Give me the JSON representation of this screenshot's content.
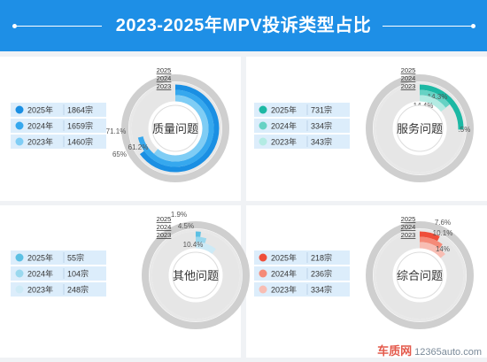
{
  "page": {
    "title": "2023-2025年MPV投诉类型占比"
  },
  "footer": {
    "logo_brand": "车质网",
    "logo_site": "12365auto.com"
  },
  "chart_data": [
    {
      "type": "donut",
      "title": "质量问题",
      "ring_labels": [
        "2025",
        "2024",
        "2023"
      ],
      "series": [
        {
          "legend": "2025年",
          "count": "1864宗",
          "percent": 65,
          "percent_label": "65%",
          "color": "#1a8fe3"
        },
        {
          "legend": "2024年",
          "count": "1659宗",
          "percent": 71.1,
          "percent_label": "71.1%",
          "color": "#36a8ee"
        },
        {
          "legend": "2023年",
          "count": "1460宗",
          "percent": 61.2,
          "percent_label": "61.2%",
          "color": "#7fcdf5"
        }
      ]
    },
    {
      "type": "donut",
      "title": "服务问题",
      "ring_labels": [
        "2025",
        "2024",
        "2023"
      ],
      "series": [
        {
          "legend": "2025年",
          "count": "731宗",
          "percent": 25.5,
          "percent_label": "25.5%",
          "color": "#1cb8a4"
        },
        {
          "legend": "2024年",
          "count": "334宗",
          "percent": 14.3,
          "percent_label": "14.3%",
          "color": "#66d2c4"
        },
        {
          "legend": "2023年",
          "count": "343宗",
          "percent": 14.4,
          "percent_label": "14.4%",
          "color": "#b3ebe3"
        }
      ]
    },
    {
      "type": "donut",
      "title": "其他问题",
      "ring_labels": [
        "2025",
        "2024",
        "2023"
      ],
      "series": [
        {
          "legend": "2025年",
          "count": "55宗",
          "percent": 1.9,
          "percent_label": "1.9%",
          "color": "#5cc0e3"
        },
        {
          "legend": "2024年",
          "count": "104宗",
          "percent": 4.5,
          "percent_label": "4.5%",
          "color": "#9ad8ee"
        },
        {
          "legend": "2023年",
          "count": "248宗",
          "percent": 10.4,
          "percent_label": "10.4%",
          "color": "#cdeaf6"
        }
      ]
    },
    {
      "type": "donut",
      "title": "综合问题",
      "ring_labels": [
        "2025",
        "2024",
        "2023"
      ],
      "series": [
        {
          "legend": "2025年",
          "count": "218宗",
          "percent": 7.6,
          "percent_label": "7.6%",
          "color": "#ef4e3a"
        },
        {
          "legend": "2024年",
          "count": "236宗",
          "percent": 10.1,
          "percent_label": "10.1%",
          "color": "#f58a78"
        },
        {
          "legend": "2023年",
          "count": "334宗",
          "percent": 14,
          "percent_label": "14%",
          "color": "#f8bdb3"
        }
      ]
    }
  ]
}
